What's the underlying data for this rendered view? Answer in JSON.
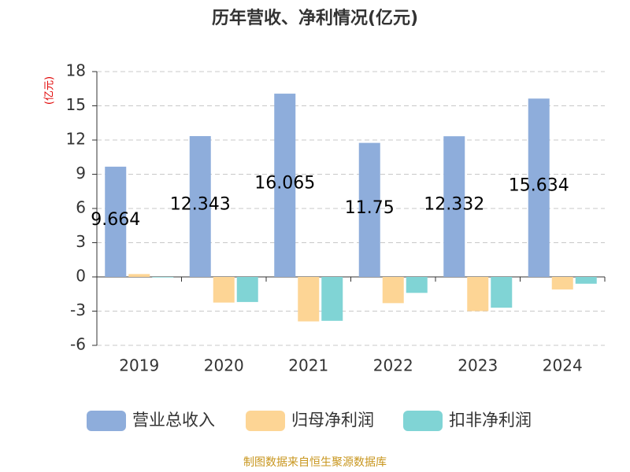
{
  "chart_data": {
    "type": "bar",
    "title": "历年营收、净利情况(亿元)",
    "y_label": "(亿元)",
    "source": "制图数据来自恒生聚源数据库",
    "categories": [
      "2019",
      "2020",
      "2021",
      "2022",
      "2023",
      "2024"
    ],
    "series": [
      {
        "name": "营业总收入",
        "color": "#8eaddb",
        "data_labels": true,
        "values": [
          9.664,
          12.343,
          16.065,
          11.75,
          12.332,
          15.634
        ]
      },
      {
        "name": "归母净利润",
        "color": "#fdd595",
        "values": [
          0.25,
          -2.25,
          -3.9,
          -2.3,
          -3.0,
          -1.1
        ]
      },
      {
        "name": "扣非净利润",
        "color": "#80d4d5",
        "values": [
          -0.05,
          -2.2,
          -3.85,
          -1.4,
          -2.7,
          -0.6
        ]
      }
    ],
    "ylim": [
      -6,
      18
    ],
    "yticks": [
      -6,
      -3,
      0,
      3,
      6,
      9,
      12,
      15,
      18
    ],
    "grid": true,
    "legend": "bottom"
  }
}
